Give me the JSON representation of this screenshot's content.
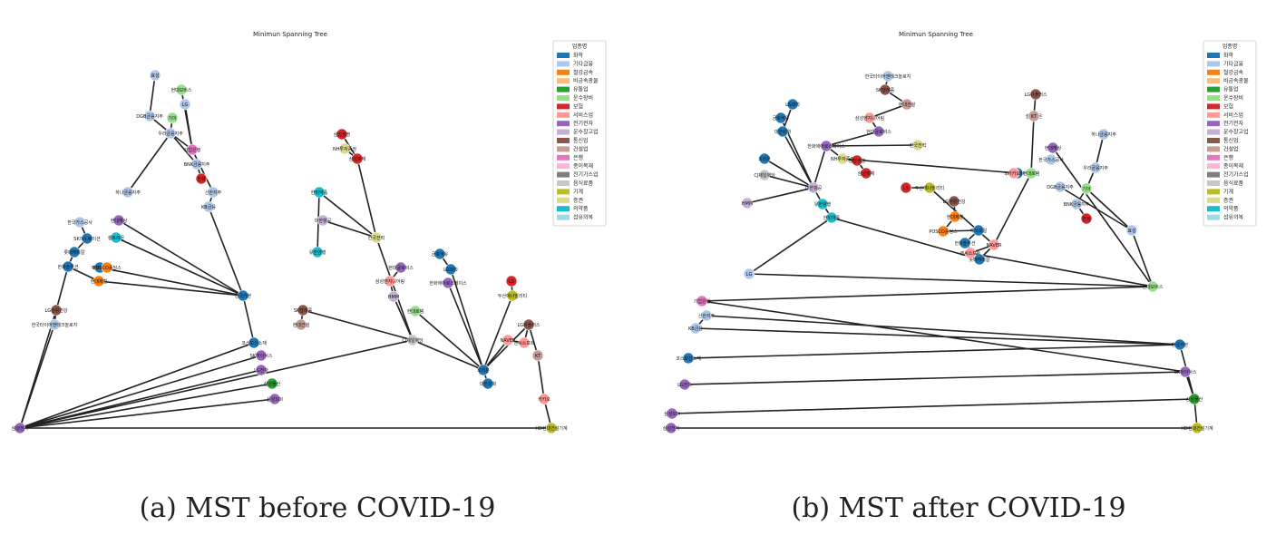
{
  "figure": {
    "panels": [
      {
        "title": "Minimun Spanning Tree",
        "caption": "(a) MST before COVID-19",
        "legend": {
          "title": "업종명",
          "items": [
            {
              "label": "화학",
              "color": "#1f77b4"
            },
            {
              "label": "기타금융",
              "color": "#aec7e8"
            },
            {
              "label": "철강금속",
              "color": "#ff7f0e"
            },
            {
              "label": "비금속광물",
              "color": "#ffbb78"
            },
            {
              "label": "유통업",
              "color": "#2ca02c"
            },
            {
              "label": "운수장비",
              "color": "#98df8a"
            },
            {
              "label": "보험",
              "color": "#d62728"
            },
            {
              "label": "서비스업",
              "color": "#ff9896"
            },
            {
              "label": "전기전자",
              "color": "#9467bd"
            },
            {
              "label": "운수창고업",
              "color": "#c5b0d5"
            },
            {
              "label": "통신업",
              "color": "#8c564b"
            },
            {
              "label": "건설업",
              "color": "#c49c94"
            },
            {
              "label": "은행",
              "color": "#e377c2"
            },
            {
              "label": "종이목재",
              "color": "#f7b6d2"
            },
            {
              "label": "전기가스업",
              "color": "#7f7f7f"
            },
            {
              "label": "음식료품",
              "color": "#c7c7c7"
            },
            {
              "label": "기계",
              "color": "#bcbd22"
            },
            {
              "label": "증권",
              "color": "#dbdb8d"
            },
            {
              "label": "의약품",
              "color": "#17becf"
            },
            {
              "label": "섬유의복",
              "color": "#9edae5"
            }
          ]
        },
        "nodes": [
          {
            "id": "a1",
            "label": "삼성전자",
            "cat": 8
          },
          {
            "id": "a2",
            "label": "HD현대건설기계",
            "cat": 16
          },
          {
            "id": "a3",
            "label": "삼성SDI",
            "cat": 8
          },
          {
            "id": "a4",
            "label": "삼성물산",
            "cat": 4
          },
          {
            "id": "a5",
            "label": "LG전자",
            "cat": 8
          },
          {
            "id": "a6",
            "label": "SK하이닉스",
            "cat": 8
          },
          {
            "id": "a7",
            "label": "코스모신소재",
            "cat": 0
          },
          {
            "id": "a8",
            "label": "한국카본",
            "cat": 0
          },
          {
            "id": "a9",
            "label": "KB금융",
            "cat": 1
          },
          {
            "id": "a10",
            "label": "신한지주",
            "cat": 1
          },
          {
            "id": "a11",
            "label": "기업은행",
            "cat": 12
          },
          {
            "id": "a12",
            "label": "LG",
            "cat": 1
          },
          {
            "id": "a13",
            "label": "현대모비스",
            "cat": 5
          },
          {
            "id": "a14",
            "label": "효성",
            "cat": 1
          },
          {
            "id": "a15",
            "label": "DGB금융지주",
            "cat": 1
          },
          {
            "id": "a16",
            "label": "기아",
            "cat": 5
          },
          {
            "id": "a17",
            "label": "우리금융지주",
            "cat": 1
          },
          {
            "id": "a18",
            "label": "BNK금융지주",
            "cat": 1
          },
          {
            "id": "a19",
            "label": "하나금융지주",
            "cat": 1
          },
          {
            "id": "a20",
            "label": "한화",
            "cat": 6
          },
          {
            "id": "a21",
            "label": "현대해상",
            "cat": 8
          },
          {
            "id": "a22",
            "label": "셀트리온",
            "cat": 18
          },
          {
            "id": "a23",
            "label": "한국가스공사",
            "cat": 1
          },
          {
            "id": "a24",
            "label": "SK이노베이션",
            "cat": 0
          },
          {
            "id": "a25",
            "label": "롯데케미칼",
            "cat": 0
          },
          {
            "id": "a26",
            "label": "한화솔루션",
            "cat": 0
          },
          {
            "id": "a27",
            "label": "에쓰오일",
            "cat": 0
          },
          {
            "id": "a28",
            "label": "POSCO홀딩스",
            "cat": 2
          },
          {
            "id": "a29",
            "label": "현대제철",
            "cat": 2
          },
          {
            "id": "a30",
            "label": "LG생활건강",
            "cat": 10
          },
          {
            "id": "a31",
            "label": "한국타이어앤테크놀로지",
            "cat": 1
          },
          {
            "id": "a32",
            "label": "SK텔레콤",
            "cat": 10
          },
          {
            "id": "a33",
            "label": "현대건설",
            "cat": 11
          },
          {
            "id": "a34",
            "label": "삼성엔지니어링",
            "cat": 7
          },
          {
            "id": "a35",
            "label": "현대글로비스",
            "cat": 8
          },
          {
            "id": "a36",
            "label": "한국전력",
            "cat": 17
          },
          {
            "id": "a37",
            "label": "삼성화재",
            "cat": 6
          },
          {
            "id": "a38",
            "label": "삼성생명",
            "cat": 6
          },
          {
            "id": "a39",
            "label": "NH투자증권",
            "cat": 17
          },
          {
            "id": "a40",
            "label": "한미약품",
            "cat": 18
          },
          {
            "id": "a41",
            "label": "유한양행",
            "cat": 18
          },
          {
            "id": "a42",
            "label": "대한항공",
            "cat": 9
          },
          {
            "id": "a43",
            "label": "HMM",
            "cat": 9
          },
          {
            "id": "a44",
            "label": "CJ제일제당",
            "cat": 15
          },
          {
            "id": "a45",
            "label": "오리온",
            "cat": 0
          },
          {
            "id": "a46",
            "label": "대한유화",
            "cat": 0
          },
          {
            "id": "a47",
            "label": "LG화학",
            "cat": 0
          },
          {
            "id": "a48",
            "label": "금호석유",
            "cat": 0
          },
          {
            "id": "a49",
            "label": "한화에어로스페이스",
            "cat": 8
          },
          {
            "id": "a50",
            "label": "현대로템",
            "cat": 5
          },
          {
            "id": "a51",
            "label": "두산에너빌리티",
            "cat": 16
          },
          {
            "id": "a52",
            "label": "LS",
            "cat": 6
          },
          {
            "id": "a53",
            "label": "LG유플러스",
            "cat": 10
          },
          {
            "id": "a54",
            "label": "KT",
            "cat": 11
          },
          {
            "id": "a55",
            "label": "카카오",
            "cat": 7
          },
          {
            "id": "a56",
            "label": "NAVER",
            "cat": 7
          },
          {
            "id": "a57",
            "label": "엔씨소프트",
            "cat": 7
          }
        ]
      },
      {
        "title": "Minimun Spanning Tree",
        "caption": "(b) MST after COVID-19",
        "legend_ref": 0
      }
    ]
  }
}
